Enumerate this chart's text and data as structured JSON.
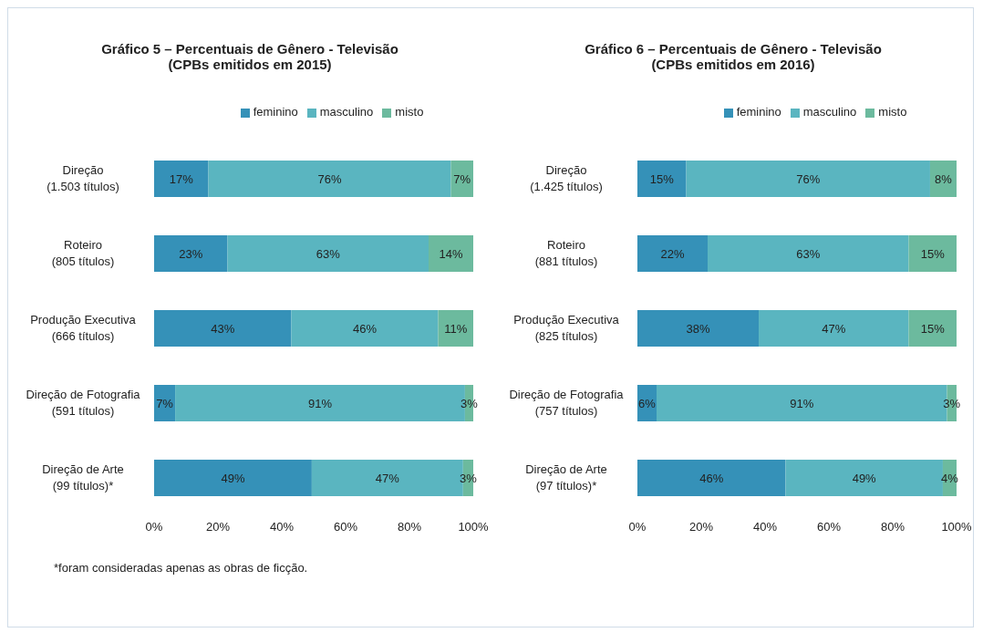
{
  "chart_data": [
    {
      "type": "bar",
      "orientation": "horizontal",
      "stacked": true,
      "title": "Gráfico 5 – Percentuais de Gênero - Televisão",
      "subtitle": "(CPBs emitidos em 2015)",
      "categories": [
        "Direção\n(1.503 títulos)",
        "Roteiro\n(805 títulos)",
        "Produção Executiva\n(666 títulos)",
        "Direção de Fotografia\n(591 títulos)",
        "Direção de Arte\n(99 títulos)*"
      ],
      "series": [
        {
          "name": "feminino",
          "color": "#3591b8",
          "values": [
            17,
            23,
            43,
            6.6,
            49.4
          ],
          "value_labels": [
            "17%",
            "23%",
            "43%",
            "7%",
            "49%"
          ]
        },
        {
          "name": "masculino",
          "color": "#5ab5c0",
          "values": [
            76,
            63,
            46,
            90.8,
            47.4
          ],
          "value_labels": [
            "76%",
            "63%",
            "46%",
            "91%",
            "47%"
          ]
        },
        {
          "name": "misto",
          "color": "#6cba9e",
          "values": [
            7,
            14,
            11,
            2.6,
            3.2
          ],
          "value_labels": [
            "7%",
            "14%",
            "11%",
            "3%",
            "3%"
          ]
        }
      ],
      "xlim": [
        0,
        100
      ],
      "xticks": [
        {
          "value": 0,
          "label": "0%"
        },
        {
          "value": 20,
          "label": "20%"
        },
        {
          "value": 40,
          "label": "40%"
        },
        {
          "value": 60,
          "label": "60%"
        },
        {
          "value": 80,
          "label": "80%"
        },
        {
          "value": 100,
          "label": "100%"
        }
      ],
      "legend": "top",
      "grid": false,
      "annotations": [
        "*foram consideradas apenas as obras de ficção."
      ]
    },
    {
      "type": "bar",
      "orientation": "horizontal",
      "stacked": true,
      "title": "Gráfico 6 – Percentuais de Gênero - Televisão",
      "subtitle": "(CPBs emitidos em 2016)",
      "categories": [
        "Direção\n(1.425 títulos)",
        "Roteiro\n(881 títulos)",
        "Produção Executiva\n(825 títulos)",
        "Direção de Fotografia\n(757 títulos)",
        "Direção de Arte\n(97 títulos)*"
      ],
      "series": [
        {
          "name": "feminino",
          "color": "#3591b8",
          "values": [
            15.3,
            22,
            38,
            6,
            46.4
          ],
          "value_labels": [
            "15%",
            "22%",
            "38%",
            "6%",
            "46%"
          ]
        },
        {
          "name": "masculino",
          "color": "#5ab5c0",
          "values": [
            76.4,
            63,
            47,
            91,
            49.3
          ],
          "value_labels": [
            "76%",
            "63%",
            "47%",
            "91%",
            "49%"
          ]
        },
        {
          "name": "misto",
          "color": "#6cba9e",
          "values": [
            8.3,
            15,
            15,
            3,
            4.3
          ],
          "value_labels": [
            "8%",
            "15%",
            "15%",
            "3%",
            "4%"
          ]
        }
      ],
      "xlim": [
        0,
        100
      ],
      "xticks": [
        {
          "value": 0,
          "label": "0%"
        },
        {
          "value": 20,
          "label": "20%"
        },
        {
          "value": 40,
          "label": "40%"
        },
        {
          "value": 60,
          "label": "60%"
        },
        {
          "value": 80,
          "label": "80%"
        },
        {
          "value": 100,
          "label": "100%"
        }
      ],
      "legend": "top",
      "grid": false
    }
  ]
}
